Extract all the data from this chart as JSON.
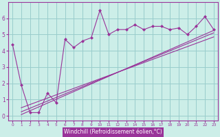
{
  "xlabel": "Windchill (Refroidissement éolien,°C)",
  "background_color": "#cceee8",
  "line_color": "#993399",
  "grid_color": "#99cccc",
  "x_data": [
    0,
    1,
    2,
    3,
    4,
    5,
    6,
    7,
    8,
    9,
    10,
    11,
    12,
    13,
    14,
    15,
    16,
    17,
    18,
    19,
    20,
    21,
    22,
    23
  ],
  "y_data": [
    4.4,
    1.9,
    0.2,
    0.2,
    1.4,
    0.8,
    4.7,
    4.2,
    4.6,
    4.8,
    6.5,
    5.0,
    5.3,
    5.3,
    5.6,
    5.3,
    5.5,
    5.5,
    5.3,
    5.4,
    5.0,
    5.5,
    6.1,
    5.3
  ],
  "reg_lines": [
    {
      "x0": 1,
      "y0": 0.08,
      "x1": 23,
      "y1": 5.25
    },
    {
      "x0": 1,
      "y0": 0.25,
      "x1": 23,
      "y1": 5.1
    },
    {
      "x0": 1,
      "y0": 0.5,
      "x1": 23,
      "y1": 4.85
    }
  ],
  "xlim": [
    -0.5,
    23.5
  ],
  "ylim": [
    -0.3,
    7.0
  ],
  "xtick_labels": [
    "0",
    "1",
    "2",
    "3",
    "4",
    "5",
    "6",
    "7",
    "8",
    "9",
    "10",
    "11",
    "12",
    "13",
    "14",
    "15",
    "16",
    "17",
    "18",
    "19",
    "20",
    "21",
    "22",
    "23"
  ],
  "yticks": [
    0,
    1,
    2,
    3,
    4,
    5,
    6
  ],
  "xlabel_bg_color": "#993399",
  "xlabel_text_color": "#ffffff"
}
